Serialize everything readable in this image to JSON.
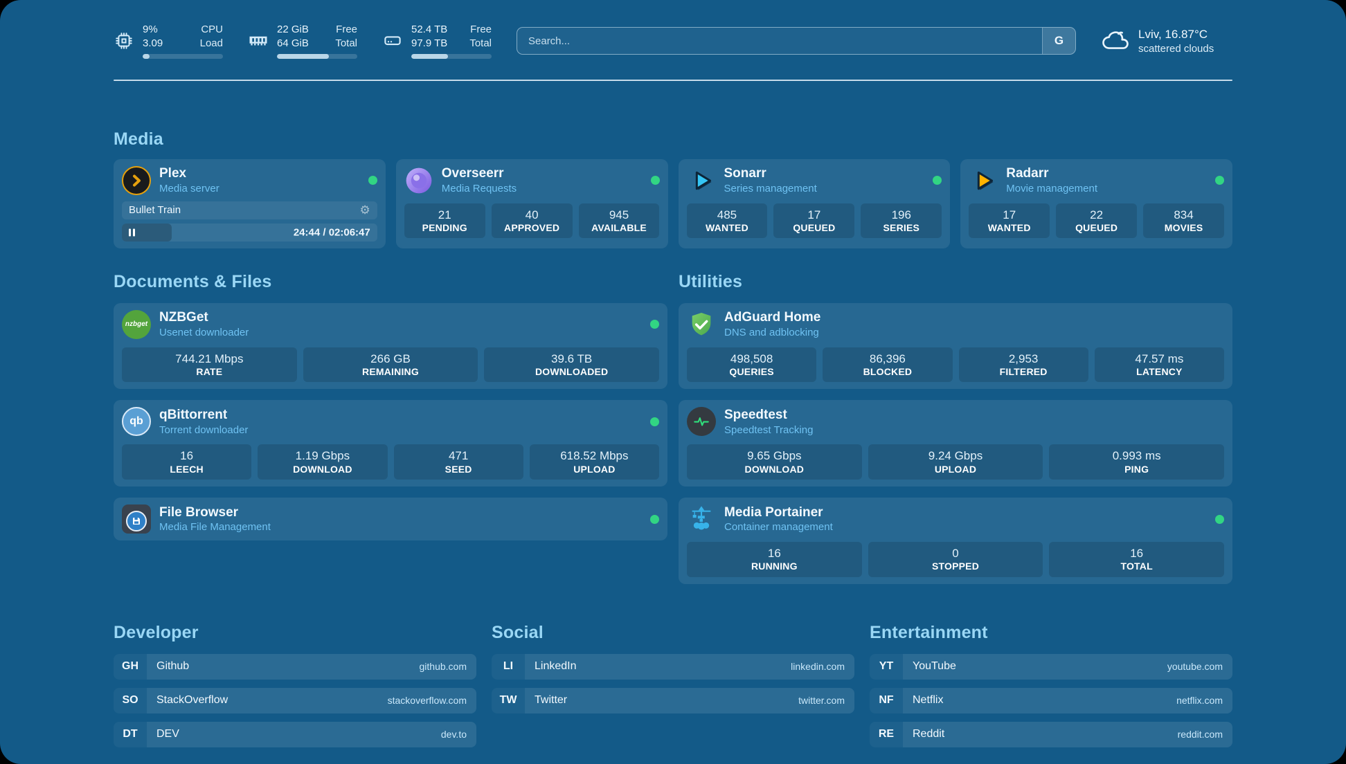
{
  "topbar": {
    "stats": [
      {
        "icon": "cpu-icon",
        "col1": [
          "9%",
          "3.09"
        ],
        "col2": [
          "CPU",
          "Load"
        ],
        "progress": 9
      },
      {
        "icon": "ram-icon",
        "col1": [
          "22 GiB",
          "64 GiB"
        ],
        "col2": [
          "Free",
          "Total"
        ],
        "progress": 65
      },
      {
        "icon": "disk-icon",
        "col1": [
          "52.4 TB",
          "97.9 TB"
        ],
        "col2": [
          "Free",
          "Total"
        ],
        "progress": 46
      }
    ],
    "search": {
      "placeholder": "Search...",
      "engine": "G"
    },
    "weather": {
      "icon": "cloud-icon",
      "headline": "Lviv, 16.87°C",
      "condition": "scattered clouds"
    }
  },
  "sections": {
    "media": {
      "title": "Media",
      "plex": {
        "icon": "plex-icon",
        "name": "Plex",
        "subtitle": "Media server",
        "status": "online",
        "now_playing": "Bullet Train",
        "time_display": "24:44 / 02:06:47",
        "progress_pct": 19.5
      },
      "overseerr": {
        "icon": "overseerr-icon",
        "name": "Overseerr",
        "subtitle": "Media Requests",
        "status": "online",
        "stats": [
          {
            "value": "21",
            "label": "PENDING"
          },
          {
            "value": "40",
            "label": "APPROVED"
          },
          {
            "value": "945",
            "label": "AVAILABLE"
          }
        ]
      },
      "sonarr": {
        "icon": "sonarr-icon",
        "name": "Sonarr",
        "subtitle": "Series management",
        "status": "online",
        "stats": [
          {
            "value": "485",
            "label": "WANTED"
          },
          {
            "value": "17",
            "label": "QUEUED"
          },
          {
            "value": "196",
            "label": "SERIES"
          }
        ]
      },
      "radarr": {
        "icon": "radarr-icon",
        "name": "Radarr",
        "subtitle": "Movie management",
        "status": "online",
        "stats": [
          {
            "value": "17",
            "label": "WANTED"
          },
          {
            "value": "22",
            "label": "QUEUED"
          },
          {
            "value": "834",
            "label": "MOVIES"
          }
        ]
      }
    },
    "documents": {
      "title": "Documents & Files",
      "nzbget": {
        "icon": "nzbget-icon",
        "name": "NZBGet",
        "subtitle": "Usenet downloader",
        "status": "online",
        "stats": [
          {
            "value": "744.21 Mbps",
            "label": "RATE"
          },
          {
            "value": "266 GB",
            "label": "REMAINING"
          },
          {
            "value": "39.6 TB",
            "label": "DOWNLOADED"
          }
        ]
      },
      "qbittorrent": {
        "icon": "qbittorrent-icon",
        "name": "qBittorrent",
        "subtitle": "Torrent downloader",
        "status": "online",
        "stats": [
          {
            "value": "16",
            "label": "LEECH"
          },
          {
            "value": "1.19 Gbps",
            "label": "DOWNLOAD"
          },
          {
            "value": "471",
            "label": "SEED"
          },
          {
            "value": "618.52 Mbps",
            "label": "UPLOAD"
          }
        ]
      },
      "filebrowser": {
        "icon": "filebrowser-icon",
        "name": "File Browser",
        "subtitle": "Media File Management",
        "status": "online"
      }
    },
    "utilities": {
      "title": "Utilities",
      "adguard": {
        "icon": "adguard-icon",
        "name": "AdGuard Home",
        "subtitle": "DNS and adblocking",
        "stats": [
          {
            "value": "498,508",
            "label": "QUERIES"
          },
          {
            "value": "86,396",
            "label": "BLOCKED"
          },
          {
            "value": "2,953",
            "label": "FILTERED"
          },
          {
            "value": "47.57 ms",
            "label": "LATENCY"
          }
        ]
      },
      "speedtest": {
        "icon": "speedtest-icon",
        "name": "Speedtest",
        "subtitle": "Speedtest Tracking",
        "stats": [
          {
            "value": "9.65 Gbps",
            "label": "DOWNLOAD"
          },
          {
            "value": "9.24 Gbps",
            "label": "UPLOAD"
          },
          {
            "value": "0.993 ms",
            "label": "PING"
          }
        ]
      },
      "portainer": {
        "icon": "portainer-icon",
        "name": "Media Portainer",
        "subtitle": "Container management",
        "status": "online",
        "stats": [
          {
            "value": "16",
            "label": "RUNNING"
          },
          {
            "value": "0",
            "label": "STOPPED"
          },
          {
            "value": "16",
            "label": "TOTAL"
          }
        ]
      }
    },
    "developer": {
      "title": "Developer",
      "links": [
        {
          "abbr": "GH",
          "name": "Github",
          "url": "github.com"
        },
        {
          "abbr": "SO",
          "name": "StackOverflow",
          "url": "stackoverflow.com"
        },
        {
          "abbr": "DT",
          "name": "DEV",
          "url": "dev.to"
        }
      ]
    },
    "social": {
      "title": "Social",
      "links": [
        {
          "abbr": "LI",
          "name": "LinkedIn",
          "url": "linkedin.com"
        },
        {
          "abbr": "TW",
          "name": "Twitter",
          "url": "twitter.com"
        }
      ]
    },
    "entertainment": {
      "title": "Entertainment",
      "links": [
        {
          "abbr": "YT",
          "name": "YouTube",
          "url": "youtube.com"
        },
        {
          "abbr": "NF",
          "name": "Netflix",
          "url": "netflix.com"
        },
        {
          "abbr": "RE",
          "name": "Reddit",
          "url": "reddit.com"
        }
      ]
    }
  },
  "colors": {
    "page_background": "#135a88",
    "accent_green": "#32d583",
    "section_title": "#9ad7f5",
    "subtitle_blue": "#6fc2f2"
  }
}
